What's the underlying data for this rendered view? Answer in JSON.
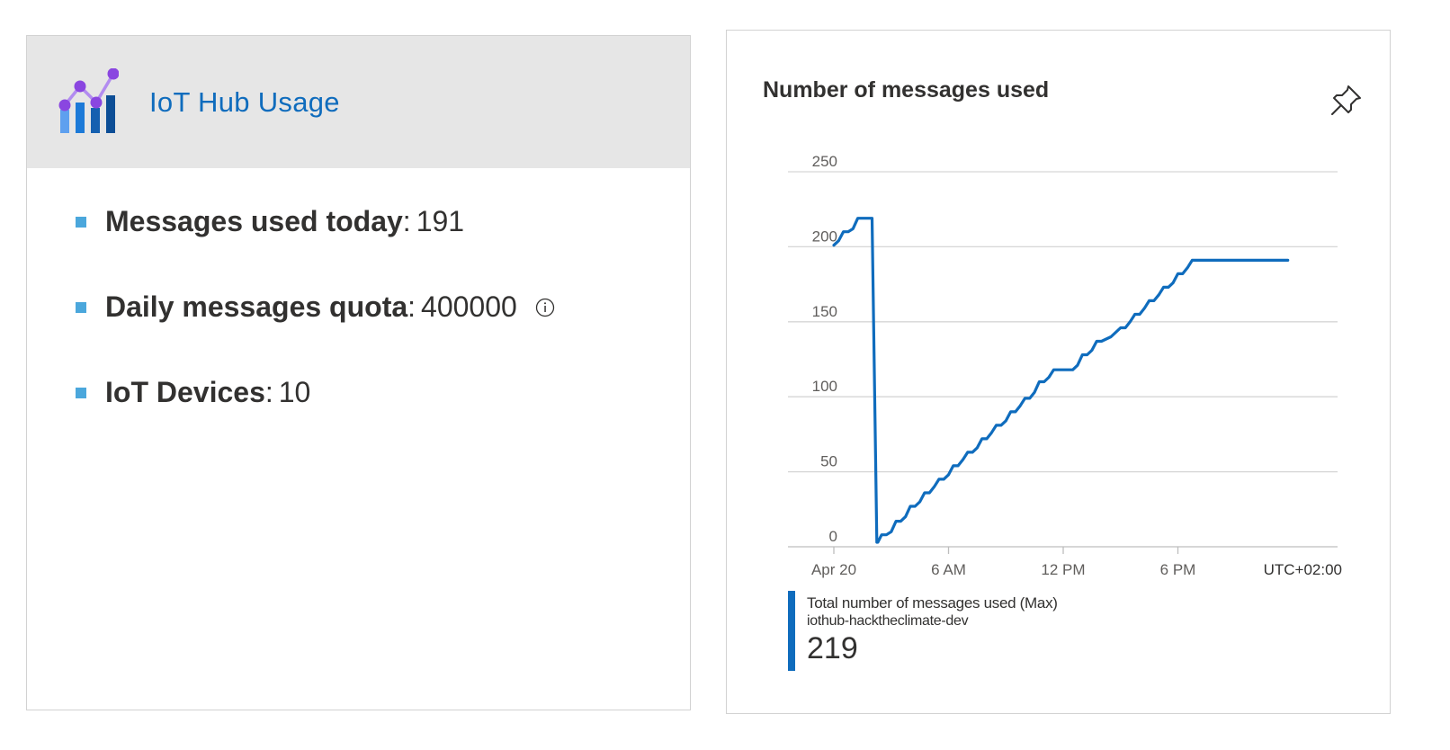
{
  "usage_card": {
    "title": "IoT Hub Usage",
    "icon": "iot-hub-usage-chart-icon",
    "stats": [
      {
        "label": "Messages used today",
        "value": "191"
      },
      {
        "label": "Daily messages quota",
        "value": "400000"
      },
      {
        "label": "IoT Devices",
        "value": "10"
      }
    ],
    "bullet_color": "#4ba7dc",
    "accent": "#0f6cbd"
  },
  "chart_card": {
    "title": "Number of messages used",
    "legend": {
      "metric": "Total number of messages used (Max)",
      "resource": "iothub-hacktheclimate-dev",
      "value": "219"
    },
    "timezone": "UTC+02:00"
  },
  "chart_data": {
    "type": "line",
    "title": "Number of messages used",
    "xlabel": "",
    "ylabel": "",
    "ylim": [
      0,
      250
    ],
    "yticks": [
      0,
      50,
      100,
      150,
      200,
      250
    ],
    "xlim_hours": [
      0,
      24
    ],
    "xticks": [
      {
        "hour": 0,
        "label": "Apr 20"
      },
      {
        "hour": 6,
        "label": "6 AM"
      },
      {
        "hour": 12,
        "label": "12 PM"
      },
      {
        "hour": 18,
        "label": "6 PM"
      }
    ],
    "grid": true,
    "series": [
      {
        "name": "Total number of messages used (Max)",
        "color": "#0f6cbd",
        "x_hours": [
          0.0,
          0.25,
          0.5,
          0.75,
          1.0,
          1.25,
          1.5,
          1.75,
          2.0,
          2.25,
          2.3,
          2.5,
          2.75,
          3.0,
          3.25,
          3.5,
          3.75,
          4.0,
          4.25,
          4.5,
          4.75,
          5.0,
          5.25,
          5.5,
          5.75,
          6.0,
          6.25,
          6.5,
          6.75,
          7.0,
          7.25,
          7.5,
          7.75,
          8.0,
          8.25,
          8.5,
          8.75,
          9.0,
          9.25,
          9.5,
          9.75,
          10.0,
          10.25,
          10.5,
          10.75,
          11.0,
          11.25,
          11.5,
          11.75,
          12.0,
          12.25,
          12.5,
          12.75,
          13.0,
          13.25,
          13.5,
          13.75,
          14.0,
          14.5,
          15.0,
          15.25,
          15.5,
          15.75,
          16.0,
          16.25,
          16.5,
          16.75,
          17.0,
          17.25,
          17.5,
          17.75,
          18.0,
          18.25,
          18.5,
          18.75,
          19.0,
          19.25,
          19.5,
          19.75,
          20.0,
          20.25,
          20.5,
          20.75,
          21.0,
          21.25,
          21.5,
          21.75,
          22.0,
          22.25,
          22.5,
          22.75,
          23.0,
          23.25,
          23.5,
          23.75
        ],
        "values": [
          201,
          204,
          210,
          210,
          212,
          219,
          219,
          219,
          219,
          3,
          3,
          8,
          8,
          10,
          17,
          17,
          20,
          27,
          27,
          30,
          36,
          36,
          40,
          45,
          45,
          48,
          54,
          54,
          58,
          63,
          63,
          66,
          72,
          72,
          76,
          81,
          81,
          84,
          90,
          90,
          94,
          99,
          99,
          103,
          110,
          110,
          113,
          118,
          118,
          118,
          118,
          118,
          121,
          128,
          128,
          131,
          137,
          137,
          140,
          146,
          146,
          150,
          155,
          155,
          159,
          164,
          164,
          168,
          173,
          173,
          176,
          182,
          182,
          186,
          191,
          191,
          191,
          191,
          191,
          191,
          191,
          191,
          191,
          191,
          191,
          191,
          191,
          191,
          191,
          191,
          191,
          191,
          191,
          191,
          191
        ]
      }
    ]
  }
}
